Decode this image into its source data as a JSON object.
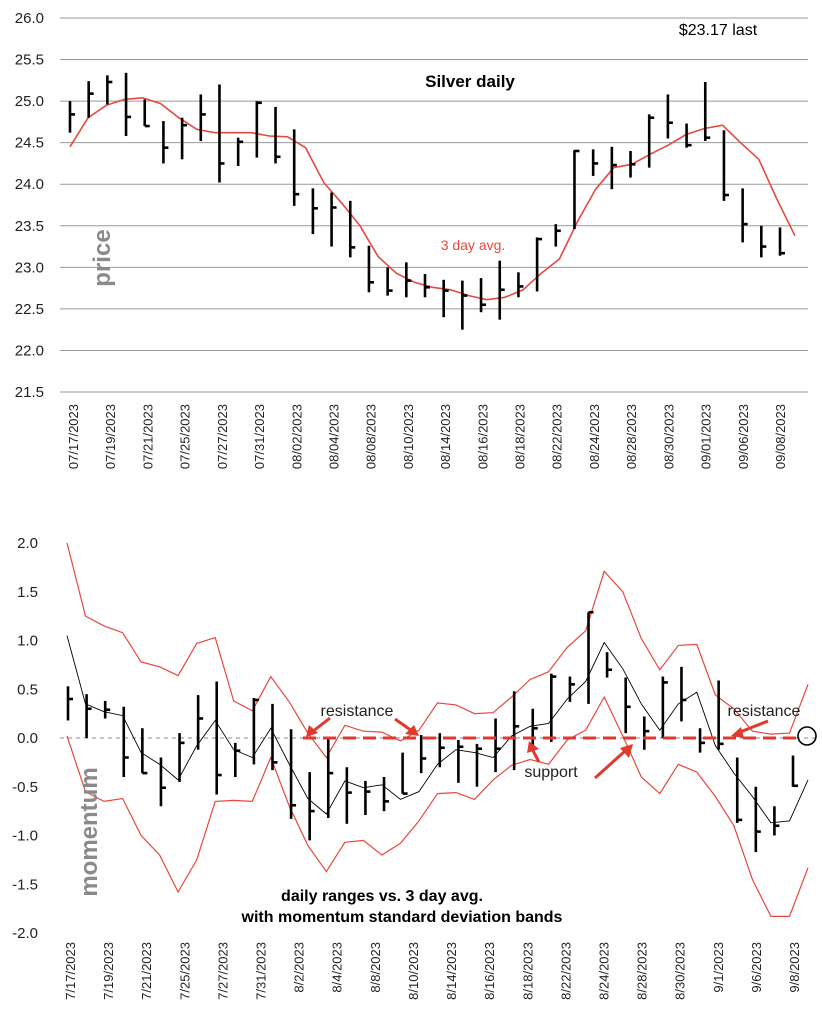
{
  "colors": {
    "avg": "#e8473f",
    "bands": "#e8473f",
    "bars": "#000000",
    "grid": "#9a9a9a",
    "arrows": "#e03a2f",
    "momentum_line": "#000000"
  },
  "chart_data": [
    {
      "type": "bar",
      "subtype": "ohlc-range",
      "title": "Silver daily",
      "last_label": "$23.17 last",
      "ylabel": "price",
      "avg_label": "3 day avg.",
      "ylim": [
        21.5,
        26.0
      ],
      "yticks": [
        "26.0",
        "25.5",
        "25.0",
        "24.5",
        "24.0",
        "23.5",
        "23.0",
        "22.5",
        "22.0",
        "21.5"
      ],
      "ytick_values": [
        26.0,
        25.5,
        25.0,
        24.5,
        24.0,
        23.5,
        23.0,
        22.5,
        22.0,
        21.5
      ],
      "xtick_labels": [
        "07/17/2023",
        "07/19/2023",
        "07/21/2023",
        "07/25/2023",
        "07/27/2023",
        "07/31/2023",
        "08/02/2023",
        "08/04/2023",
        "08/08/2023",
        "08/10/2023",
        "08/14/2023",
        "08/16/2023",
        "08/18/2023",
        "08/22/2023",
        "08/24/2023",
        "08/28/2023",
        "08/30/2023",
        "09/01/2023",
        "09/06/2023",
        "09/08/2023"
      ],
      "bars": [
        {
          "high": 25.0,
          "low": 24.62,
          "close": 24.84
        },
        {
          "high": 25.24,
          "low": 24.8,
          "close": 25.09
        },
        {
          "high": 25.31,
          "low": 24.96,
          "close": 25.23
        },
        {
          "high": 25.34,
          "low": 24.58,
          "close": 24.81
        },
        {
          "high": 25.02,
          "low": 24.7,
          "close": 24.7
        },
        {
          "high": 24.76,
          "low": 24.25,
          "close": 24.44
        },
        {
          "high": 24.8,
          "low": 24.3,
          "close": 24.71
        },
        {
          "high": 25.08,
          "low": 24.52,
          "close": 24.84
        },
        {
          "high": 25.2,
          "low": 24.02,
          "close": 24.25
        },
        {
          "high": 24.56,
          "low": 24.22,
          "close": 24.51
        },
        {
          "high": 25.0,
          "low": 24.32,
          "close": 24.98
        },
        {
          "high": 24.93,
          "low": 24.25,
          "close": 24.33
        },
        {
          "high": 24.66,
          "low": 23.74,
          "close": 23.88
        },
        {
          "high": 23.95,
          "low": 23.4,
          "close": 23.71
        },
        {
          "high": 23.9,
          "low": 23.25,
          "close": 23.72
        },
        {
          "high": 23.8,
          "low": 23.12,
          "close": 23.24
        },
        {
          "high": 23.26,
          "low": 22.7,
          "close": 22.82
        },
        {
          "high": 23.0,
          "low": 22.66,
          "close": 22.72
        },
        {
          "high": 23.06,
          "low": 22.64,
          "close": 22.84
        },
        {
          "high": 22.92,
          "low": 22.64,
          "close": 22.76
        },
        {
          "high": 22.85,
          "low": 22.4,
          "close": 22.72
        },
        {
          "high": 22.84,
          "low": 22.25,
          "close": 22.66
        },
        {
          "high": 22.87,
          "low": 22.46,
          "close": 22.55
        },
        {
          "high": 23.08,
          "low": 22.37,
          "close": 22.73
        },
        {
          "high": 22.94,
          "low": 22.64,
          "close": 22.77
        },
        {
          "high": 23.36,
          "low": 22.71,
          "close": 23.34
        },
        {
          "high": 23.52,
          "low": 23.25,
          "close": 23.44
        },
        {
          "high": 24.41,
          "low": 23.46,
          "close": 24.4
        },
        {
          "high": 24.42,
          "low": 24.1,
          "close": 24.25
        },
        {
          "high": 24.45,
          "low": 23.94,
          "close": 24.23
        },
        {
          "high": 24.4,
          "low": 24.08,
          "close": 24.24
        },
        {
          "high": 24.84,
          "low": 24.2,
          "close": 24.8
        },
        {
          "high": 25.08,
          "low": 24.55,
          "close": 24.74
        },
        {
          "high": 24.73,
          "low": 24.44,
          "close": 24.47
        },
        {
          "high": 25.23,
          "low": 24.52,
          "close": 24.56
        },
        {
          "high": 24.65,
          "low": 23.8,
          "close": 23.87
        },
        {
          "high": 23.95,
          "low": 23.3,
          "close": 23.52
        },
        {
          "high": 23.5,
          "low": 23.12,
          "close": 23.25
        },
        {
          "high": 23.48,
          "low": 23.14,
          "close": 23.17
        }
      ],
      "avg_series": [
        [
          0,
          24.45
        ],
        [
          1,
          24.8
        ],
        [
          2,
          24.95
        ],
        [
          3,
          25.02
        ],
        [
          4,
          25.04
        ],
        [
          5,
          24.97
        ],
        [
          6,
          24.8
        ],
        [
          7,
          24.66
        ],
        [
          8,
          24.62
        ],
        [
          9,
          24.62
        ],
        [
          10,
          24.62
        ],
        [
          11,
          24.58
        ],
        [
          12,
          24.57
        ],
        [
          13,
          24.44
        ],
        [
          14,
          24.02
        ],
        [
          15,
          23.77
        ],
        [
          16,
          23.5
        ],
        [
          17,
          23.13
        ],
        [
          18,
          22.93
        ],
        [
          19,
          22.82
        ],
        [
          20,
          22.76
        ],
        [
          21,
          22.73
        ],
        [
          22,
          22.66
        ],
        [
          23,
          22.61
        ],
        [
          24,
          22.64
        ],
        [
          25,
          22.73
        ],
        [
          26,
          22.93
        ],
        [
          27,
          23.1
        ],
        [
          28,
          23.55
        ],
        [
          29,
          23.94
        ],
        [
          30,
          24.2
        ],
        [
          31,
          24.24
        ],
        [
          32,
          24.36
        ],
        [
          33,
          24.47
        ],
        [
          34,
          24.6
        ],
        [
          35,
          24.67
        ],
        [
          36,
          24.71
        ],
        [
          37,
          24.5
        ],
        [
          38,
          24.3
        ],
        [
          39,
          23.82
        ],
        [
          40,
          23.38
        ]
      ]
    },
    {
      "type": "bar",
      "subtype": "momentum-range",
      "caption_line1": "daily ranges vs. 3 day avg.",
      "caption_line2": "with momentum standard deviation bands",
      "ylabel": "momentum",
      "ylim": [
        -2.0,
        2.0
      ],
      "yticks": [
        "2.0",
        "1.5",
        "1.0",
        "0.5",
        "0.0",
        "-0.5",
        "-1.0",
        "-1.5",
        "-2.0"
      ],
      "ytick_values": [
        2.0,
        1.5,
        1.0,
        0.5,
        0.0,
        -0.5,
        -1.0,
        -1.5,
        -2.0
      ],
      "xtick_labels": [
        "7/17/2023",
        "7/19/2023",
        "7/21/2023",
        "7/25/2023",
        "7/27/2023",
        "7/31/2023",
        "8/2/2023",
        "8/4/2023",
        "8/8/2023",
        "8/10/2023",
        "8/14/2023",
        "8/16/2023",
        "8/18/2023",
        "8/22/2023",
        "8/24/2023",
        "8/28/2023",
        "8/30/2023",
        "9/1/2023",
        "9/6/2023",
        "9/8/2023"
      ],
      "annotations": {
        "resistance": "resistance",
        "support": "support",
        "resistance_right": "resistance"
      },
      "bars": [
        {
          "high": 0.53,
          "low": 0.18,
          "close": 0.4
        },
        {
          "high": 0.45,
          "low": 0.0,
          "close": 0.3
        },
        {
          "high": 0.38,
          "low": 0.2,
          "close": 0.29
        },
        {
          "high": 0.32,
          "low": -0.4,
          "close": -0.2
        },
        {
          "high": 0.1,
          "low": -0.36,
          "close": -0.36
        },
        {
          "high": -0.2,
          "low": -0.7,
          "close": -0.51
        },
        {
          "high": 0.05,
          "low": -0.45,
          "close": -0.05
        },
        {
          "high": 0.44,
          "low": -0.12,
          "close": 0.2
        },
        {
          "high": 0.58,
          "low": -0.58,
          "close": -0.38
        },
        {
          "high": -0.05,
          "low": -0.4,
          "close": -0.13
        },
        {
          "high": 0.41,
          "low": -0.27,
          "close": 0.39
        },
        {
          "high": 0.35,
          "low": -0.33,
          "close": -0.25
        },
        {
          "high": 0.09,
          "low": -0.83,
          "close": -0.69
        },
        {
          "high": -0.35,
          "low": -1.05,
          "close": -0.75
        },
        {
          "high": 0.0,
          "low": -0.82,
          "close": -0.36
        },
        {
          "high": -0.3,
          "low": -0.88,
          "close": -0.56
        },
        {
          "high": -0.44,
          "low": -0.79,
          "close": -0.55
        },
        {
          "high": -0.4,
          "low": -0.75,
          "close": -0.65
        },
        {
          "high": -0.15,
          "low": -0.57,
          "close": -0.57
        },
        {
          "high": 0.03,
          "low": -0.36,
          "close": -0.21
        },
        {
          "high": 0.05,
          "low": -0.3,
          "close": -0.1
        },
        {
          "high": -0.02,
          "low": -0.46,
          "close": -0.09
        },
        {
          "high": -0.06,
          "low": -0.5,
          "close": -0.11
        },
        {
          "high": 0.2,
          "low": -0.35,
          "close": -0.11
        },
        {
          "high": 0.48,
          "low": -0.33,
          "close": 0.12
        },
        {
          "high": 0.3,
          "low": -0.1,
          "close": 0.1
        },
        {
          "high": 0.66,
          "low": -0.04,
          "close": 0.63
        },
        {
          "high": 0.63,
          "low": 0.37,
          "close": 0.55
        },
        {
          "high": 1.29,
          "low": 0.35,
          "close": 1.29
        },
        {
          "high": 0.88,
          "low": 0.62,
          "close": 0.7
        },
        {
          "high": 0.62,
          "low": 0.05,
          "close": 0.32
        },
        {
          "high": 0.22,
          "low": -0.12,
          "close": 0.07
        },
        {
          "high": 0.63,
          "low": 0.0,
          "close": 0.57
        },
        {
          "high": 0.73,
          "low": 0.17,
          "close": 0.39
        },
        {
          "high": 0.1,
          "low": -0.15,
          "close": -0.05
        },
        {
          "high": 0.59,
          "low": -0.12,
          "close": -0.06
        },
        {
          "high": -0.2,
          "low": -0.87,
          "close": -0.84
        },
        {
          "high": -0.5,
          "low": -1.17,
          "close": -0.96
        },
        {
          "high": -0.7,
          "low": -1.0,
          "close": -0.9
        },
        {
          "high": -0.18,
          "low": -0.5,
          "close": -0.49
        }
      ],
      "momentum_line": [
        [
          0,
          1.05
        ],
        [
          1,
          0.35
        ],
        [
          2,
          0.27
        ],
        [
          3,
          0.23
        ],
        [
          4,
          -0.15
        ],
        [
          5,
          -0.27
        ],
        [
          6,
          -0.43
        ],
        [
          7,
          -0.08
        ],
        [
          8,
          0.18
        ],
        [
          9,
          -0.12
        ],
        [
          10,
          -0.2
        ],
        [
          11,
          0.1
        ],
        [
          12,
          -0.27
        ],
        [
          13,
          -0.62
        ],
        [
          14,
          -0.78
        ],
        [
          15,
          -0.44
        ],
        [
          16,
          -0.51
        ],
        [
          17,
          -0.48
        ],
        [
          18,
          -0.63
        ],
        [
          19,
          -0.55
        ],
        [
          20,
          -0.27
        ],
        [
          21,
          -0.12
        ],
        [
          22,
          -0.15
        ],
        [
          23,
          -0.2
        ],
        [
          24,
          0.02
        ],
        [
          25,
          0.12
        ],
        [
          26,
          0.15
        ],
        [
          27,
          0.4
        ],
        [
          28,
          0.58
        ],
        [
          29,
          0.98
        ],
        [
          30,
          0.71
        ],
        [
          31,
          0.35
        ],
        [
          32,
          0.08
        ],
        [
          33,
          0.35
        ],
        [
          34,
          0.47
        ],
        [
          35,
          -0.08
        ],
        [
          36,
          -0.36
        ],
        [
          37,
          -0.6
        ],
        [
          38,
          -0.87
        ],
        [
          39,
          -0.85
        ],
        [
          40,
          -0.43
        ]
      ],
      "upper_band": [
        [
          0,
          2.0
        ],
        [
          1,
          1.25
        ],
        [
          2,
          1.15
        ],
        [
          3,
          1.08
        ],
        [
          4,
          0.78
        ],
        [
          5,
          0.73
        ],
        [
          6,
          0.64
        ],
        [
          7,
          0.97
        ],
        [
          8,
          1.03
        ],
        [
          9,
          0.38
        ],
        [
          10,
          0.28
        ],
        [
          11,
          0.63
        ],
        [
          12,
          0.37
        ],
        [
          13,
          0.05
        ],
        [
          14,
          -0.2
        ],
        [
          15,
          0.13
        ],
        [
          16,
          0.07
        ],
        [
          17,
          0.06
        ],
        [
          18,
          -0.03
        ],
        [
          19,
          0.08
        ],
        [
          20,
          0.36
        ],
        [
          21,
          0.34
        ],
        [
          22,
          0.25
        ],
        [
          23,
          0.26
        ],
        [
          24,
          0.42
        ],
        [
          25,
          0.6
        ],
        [
          26,
          0.68
        ],
        [
          27,
          0.93
        ],
        [
          28,
          1.1
        ],
        [
          29,
          1.71
        ],
        [
          30,
          1.5
        ],
        [
          31,
          1.02
        ],
        [
          32,
          0.7
        ],
        [
          33,
          0.95
        ],
        [
          34,
          0.96
        ],
        [
          35,
          0.44
        ],
        [
          36,
          0.3
        ],
        [
          37,
          0.07
        ],
        [
          38,
          0.04
        ],
        [
          39,
          0.05
        ],
        [
          40,
          0.55
        ]
      ],
      "lower_band": [
        [
          0,
          0.02
        ],
        [
          1,
          -0.55
        ],
        [
          2,
          -0.65
        ],
        [
          3,
          -0.62
        ],
        [
          4,
          -1.0
        ],
        [
          5,
          -1.2
        ],
        [
          6,
          -1.58
        ],
        [
          7,
          -1.25
        ],
        [
          8,
          -0.65
        ],
        [
          9,
          -0.64
        ],
        [
          10,
          -0.65
        ],
        [
          11,
          -0.2
        ],
        [
          12,
          -0.7
        ],
        [
          13,
          -1.1
        ],
        [
          14,
          -1.37
        ],
        [
          15,
          -1.07
        ],
        [
          16,
          -1.05
        ],
        [
          17,
          -1.2
        ],
        [
          18,
          -1.08
        ],
        [
          19,
          -0.85
        ],
        [
          20,
          -0.57
        ],
        [
          21,
          -0.56
        ],
        [
          22,
          -0.63
        ],
        [
          23,
          -0.43
        ],
        [
          24,
          -0.28
        ],
        [
          25,
          -0.22
        ],
        [
          26,
          -0.27
        ],
        [
          27,
          -0.02
        ],
        [
          28,
          0.08
        ],
        [
          29,
          0.42
        ],
        [
          30,
          0.02
        ],
        [
          31,
          -0.4
        ],
        [
          32,
          -0.57
        ],
        [
          33,
          -0.27
        ],
        [
          34,
          -0.35
        ],
        [
          35,
          -0.6
        ],
        [
          36,
          -0.9
        ],
        [
          37,
          -1.45
        ],
        [
          38,
          -1.83
        ],
        [
          39,
          -1.83
        ],
        [
          40,
          -1.33
        ]
      ]
    }
  ]
}
